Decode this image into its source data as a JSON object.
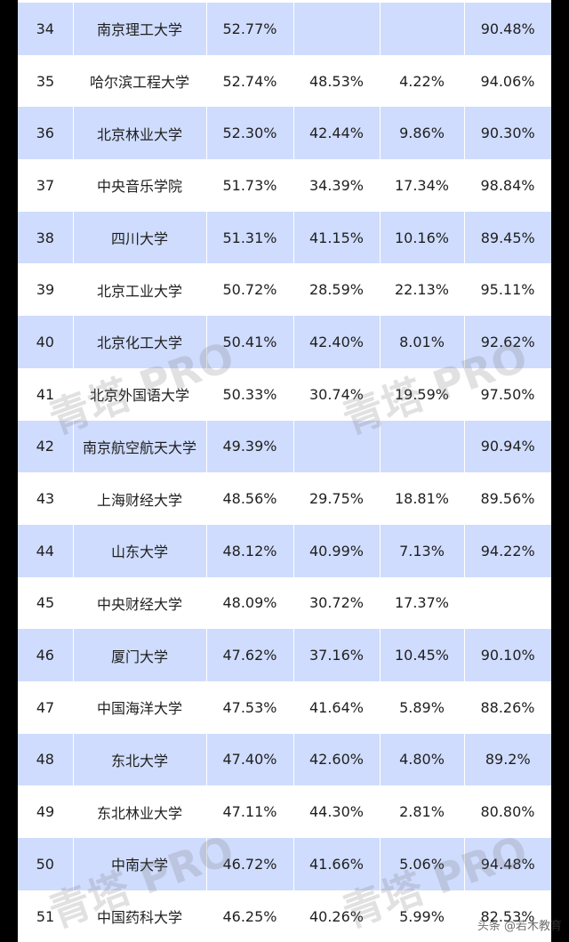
{
  "rows": [
    {
      "rank": "34",
      "name": "南京理工大学",
      "p1": "52.77%",
      "p2": "",
      "p3": "",
      "p4": "90.48%"
    },
    {
      "rank": "35",
      "name": "哈尔滨工程大学",
      "p1": "52.74%",
      "p2": "48.53%",
      "p3": "4.22%",
      "p4": "94.06%"
    },
    {
      "rank": "36",
      "name": "北京林业大学",
      "p1": "52.30%",
      "p2": "42.44%",
      "p3": "9.86%",
      "p4": "90.30%"
    },
    {
      "rank": "37",
      "name": "中央音乐学院",
      "p1": "51.73%",
      "p2": "34.39%",
      "p3": "17.34%",
      "p4": "98.84%"
    },
    {
      "rank": "38",
      "name": "四川大学",
      "p1": "51.31%",
      "p2": "41.15%",
      "p3": "10.16%",
      "p4": "89.45%"
    },
    {
      "rank": "39",
      "name": "北京工业大学",
      "p1": "50.72%",
      "p2": "28.59%",
      "p3": "22.13%",
      "p4": "95.11%"
    },
    {
      "rank": "40",
      "name": "北京化工大学",
      "p1": "50.41%",
      "p2": "42.40%",
      "p3": "8.01%",
      "p4": "92.62%"
    },
    {
      "rank": "41",
      "name": "北京外国语大学",
      "p1": "50.33%",
      "p2": "30.74%",
      "p3": "19.59%",
      "p4": "97.50%"
    },
    {
      "rank": "42",
      "name": "南京航空航天大学",
      "p1": "49.39%",
      "p2": "",
      "p3": "",
      "p4": "90.94%"
    },
    {
      "rank": "43",
      "name": "上海财经大学",
      "p1": "48.56%",
      "p2": "29.75%",
      "p3": "18.81%",
      "p4": "89.56%"
    },
    {
      "rank": "44",
      "name": "山东大学",
      "p1": "48.12%",
      "p2": "40.99%",
      "p3": "7.13%",
      "p4": "94.22%"
    },
    {
      "rank": "45",
      "name": "中央财经大学",
      "p1": "48.09%",
      "p2": "30.72%",
      "p3": "17.37%",
      "p4": ""
    },
    {
      "rank": "46",
      "name": "厦门大学",
      "p1": "47.62%",
      "p2": "37.16%",
      "p3": "10.45%",
      "p4": "90.10%"
    },
    {
      "rank": "47",
      "name": "中国海洋大学",
      "p1": "47.53%",
      "p2": "41.64%",
      "p3": "5.89%",
      "p4": "88.26%"
    },
    {
      "rank": "48",
      "name": "东北大学",
      "p1": "47.40%",
      "p2": "42.60%",
      "p3": "4.80%",
      "p4": "89.2%"
    },
    {
      "rank": "49",
      "name": "东北林业大学",
      "p1": "47.11%",
      "p2": "44.30%",
      "p3": "2.81%",
      "p4": "80.80%"
    },
    {
      "rank": "50",
      "name": "中南大学",
      "p1": "46.72%",
      "p2": "41.66%",
      "p3": "5.06%",
      "p4": "94.48%"
    },
    {
      "rank": "51",
      "name": "中国药科大学",
      "p1": "46.25%",
      "p2": "40.26%",
      "p3": "5.99%",
      "p4": "82.53%"
    }
  ],
  "watermark": {
    "text": "青塔 PRO"
  },
  "source_tag": "头条 @若木教育",
  "colors": {
    "shade": "#cfdcfd",
    "frame": "#000000"
  }
}
